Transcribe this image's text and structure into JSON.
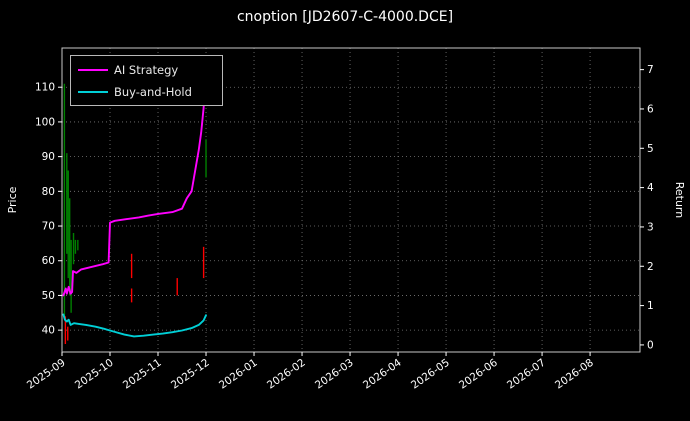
{
  "chart_data": {
    "type": "line",
    "title": "cnoption [JD2607-C-4000.DCE]",
    "ylabel_left": "Price",
    "ylabel_right": "Return",
    "x_tick_labels": [
      "2025-09",
      "2025-10",
      "2025-11",
      "2025-12",
      "2026-01",
      "2026-02",
      "2026-03",
      "2026-04",
      "2026-05",
      "2026-06",
      "2026-07",
      "2026-08"
    ],
    "y_ticks_left": [
      40,
      50,
      60,
      70,
      80,
      90,
      100,
      110
    ],
    "y_ticks_right": [
      0,
      1,
      2,
      3,
      4,
      5,
      6,
      7
    ],
    "ylim_left": [
      33.7,
      121.3
    ],
    "ylim_right": [
      -0.18,
      7.55
    ],
    "xlim_months": [
      0,
      12.04
    ],
    "grid": true,
    "background_color": "#000000",
    "text_color": "#ffffff",
    "legend": {
      "position": "upper-left",
      "entries": [
        {
          "label": "AI Strategy",
          "color": "#ff00ff"
        },
        {
          "label": "Buy-and-Hold",
          "color": "#00cfd6"
        }
      ]
    },
    "series": [
      {
        "name": "AI Strategy",
        "color": "#ff00ff",
        "axis": "left",
        "points": [
          [
            0.03,
            50
          ],
          [
            0.08,
            52
          ],
          [
            0.1,
            50.5
          ],
          [
            0.14,
            52.5
          ],
          [
            0.18,
            50.5
          ],
          [
            0.21,
            51
          ],
          [
            0.23,
            57
          ],
          [
            0.3,
            56.5
          ],
          [
            0.4,
            57.5
          ],
          [
            0.55,
            58
          ],
          [
            0.7,
            58.5
          ],
          [
            0.85,
            59
          ],
          [
            0.97,
            59.5
          ],
          [
            1.0,
            71
          ],
          [
            1.1,
            71.5
          ],
          [
            1.35,
            72
          ],
          [
            1.6,
            72.5
          ],
          [
            1.8,
            73
          ],
          [
            2.0,
            73.5
          ],
          [
            2.3,
            74
          ],
          [
            2.5,
            75
          ],
          [
            2.6,
            78
          ],
          [
            2.7,
            80
          ],
          [
            2.75,
            84
          ],
          [
            2.8,
            88
          ],
          [
            2.85,
            92
          ],
          [
            2.9,
            97
          ],
          [
            2.95,
            104
          ],
          [
            3.0,
            115
          ]
        ]
      },
      {
        "name": "Buy-and-Hold",
        "color": "#00cfd6",
        "axis": "left",
        "points": [
          [
            0.03,
            44.5
          ],
          [
            0.06,
            43
          ],
          [
            0.1,
            42.5
          ],
          [
            0.14,
            43
          ],
          [
            0.18,
            41.5
          ],
          [
            0.25,
            42
          ],
          [
            0.35,
            41.8
          ],
          [
            0.5,
            41.5
          ],
          [
            0.7,
            41
          ],
          [
            0.9,
            40.3
          ],
          [
            1.1,
            39.5
          ],
          [
            1.3,
            38.7
          ],
          [
            1.5,
            38.2
          ],
          [
            1.7,
            38.4
          ],
          [
            1.9,
            38.7
          ],
          [
            2.1,
            39
          ],
          [
            2.3,
            39.4
          ],
          [
            2.5,
            39.9
          ],
          [
            2.7,
            40.6
          ],
          [
            2.85,
            41.5
          ],
          [
            2.95,
            42.8
          ],
          [
            3.0,
            44.3
          ]
        ]
      }
    ],
    "price_bars": [
      {
        "x": 0.05,
        "low": 44,
        "high": 111,
        "color": "#008000"
      },
      {
        "x": 0.07,
        "low": 36,
        "high": 44,
        "color": "#ff0000"
      },
      {
        "x": 0.1,
        "low": 62,
        "high": 91,
        "color": "#008000"
      },
      {
        "x": 0.12,
        "low": 37,
        "high": 41,
        "color": "#ff0000"
      },
      {
        "x": 0.13,
        "low": 55,
        "high": 86,
        "color": "#008000"
      },
      {
        "x": 0.16,
        "low": 50,
        "high": 78,
        "color": "#008000"
      },
      {
        "x": 0.19,
        "low": 45,
        "high": 66,
        "color": "#008000"
      },
      {
        "x": 0.24,
        "low": 59,
        "high": 68,
        "color": "#008000"
      },
      {
        "x": 0.28,
        "low": 62,
        "high": 66,
        "color": "#008000"
      },
      {
        "x": 0.33,
        "low": 63,
        "high": 66,
        "color": "#008000"
      },
      {
        "x": 1.45,
        "low": 55,
        "high": 62,
        "color": "#ff0000"
      },
      {
        "x": 1.45,
        "low": 48,
        "high": 52,
        "color": "#ff0000"
      },
      {
        "x": 2.4,
        "low": 50,
        "high": 55,
        "color": "#ff0000"
      },
      {
        "x": 2.95,
        "low": 55,
        "high": 64,
        "color": "#ff0000"
      },
      {
        "x": 3.0,
        "low": 84,
        "high": 95,
        "color": "#008000"
      }
    ]
  }
}
